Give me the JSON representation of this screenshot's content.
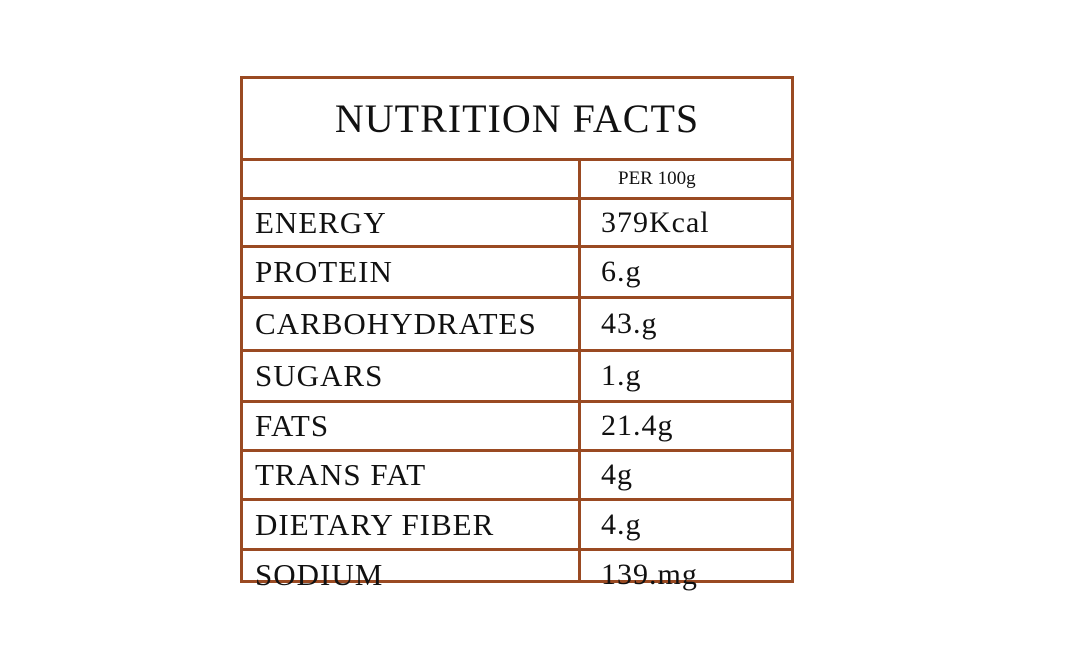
{
  "title": "NUTRITION FACTS",
  "table": {
    "column_header": "PER 100g",
    "rows": [
      [
        "ENERGY",
        "379Kcal"
      ],
      [
        "PROTEIN",
        "6.g"
      ],
      [
        "CARBOHYDRATES",
        "43.g"
      ],
      [
        "SUGARS",
        "1.g"
      ],
      [
        "FATS",
        "21.4g"
      ],
      [
        "TRANS FAT",
        "4g"
      ],
      [
        "DIETARY FIBER",
        "4.g"
      ],
      [
        "SODIUM",
        "139.mg"
      ]
    ]
  }
}
